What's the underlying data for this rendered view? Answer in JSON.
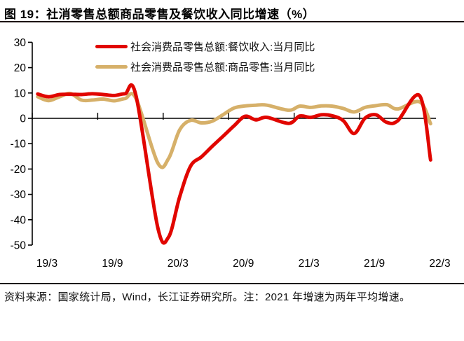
{
  "header": {
    "title": "图 19：社消零售总额商品零售及餐饮收入同比增速（%）"
  },
  "footer": {
    "note": "资料来源：国家统计局，Wind，长江证券研究所。注：2021 年增速为两年平均增速。"
  },
  "colors": {
    "catering_red": "#e10600",
    "goods_tan": "#d6b069",
    "axis_black": "#000000",
    "rule_dark": "#1c1212"
  },
  "chart_data": {
    "type": "line",
    "title": "社消零售总额商品零售及餐饮收入同比增速（%）",
    "ylim": [
      -50,
      30
    ],
    "y_ticks": [
      30,
      20,
      10,
      0,
      -10,
      -20,
      -30,
      -40,
      -50
    ],
    "x_tick_labels": [
      "19/3",
      "19/9",
      "20/3",
      "20/9",
      "21/3",
      "21/9",
      "22/3"
    ],
    "grid": false,
    "legend_position": "top-center-inside",
    "x": [
      "19/3",
      "19/4",
      "19/5",
      "19/6",
      "19/7",
      "19/8",
      "19/9",
      "19/10",
      "19/11",
      "19/12",
      "20/1",
      "20/2",
      "20/3",
      "20/4",
      "20/5",
      "20/6",
      "20/7",
      "20/8",
      "20/9",
      "20/10",
      "20/11",
      "20/12",
      "21/1",
      "21/2",
      "21/3",
      "21/4",
      "21/5",
      "21/6",
      "21/7",
      "21/8",
      "21/9",
      "21/10",
      "21/11",
      "21/12",
      "22/1",
      "22/2",
      "22/3"
    ],
    "series": [
      {
        "name": "社会消费品零售总额:餐饮收入:当月同比",
        "color": "#e10600",
        "values": [
          9.6,
          8.5,
          9.4,
          9.5,
          9.4,
          9.7,
          9.4,
          9.0,
          9.7,
          9.1,
          null,
          -43.1,
          -46.8,
          -31.1,
          -18.9,
          -15.2,
          -11.0,
          -7.0,
          -2.9,
          0.8,
          -0.6,
          0.4,
          null,
          -2.0,
          0.9,
          0.4,
          1.4,
          1.0,
          -0.9,
          -6.0,
          0.1,
          1.4,
          -1.6,
          -0.9,
          null,
          8.9,
          -16.4
        ]
      },
      {
        "name": "社会消费品零售总额:商品零售:当月同比",
        "color": "#d6b069",
        "values": [
          8.5,
          7.0,
          8.5,
          9.8,
          7.2,
          7.2,
          7.6,
          6.9,
          7.8,
          7.9,
          null,
          -17.6,
          -15.8,
          -4.6,
          -0.8,
          -1.8,
          -1.1,
          1.5,
          4.1,
          4.9,
          5.2,
          5.2,
          null,
          3.2,
          4.8,
          4.3,
          4.9,
          4.8,
          3.9,
          2.5,
          4.3,
          5.0,
          5.4,
          3.7,
          null,
          6.5,
          -2.1
        ]
      }
    ]
  }
}
